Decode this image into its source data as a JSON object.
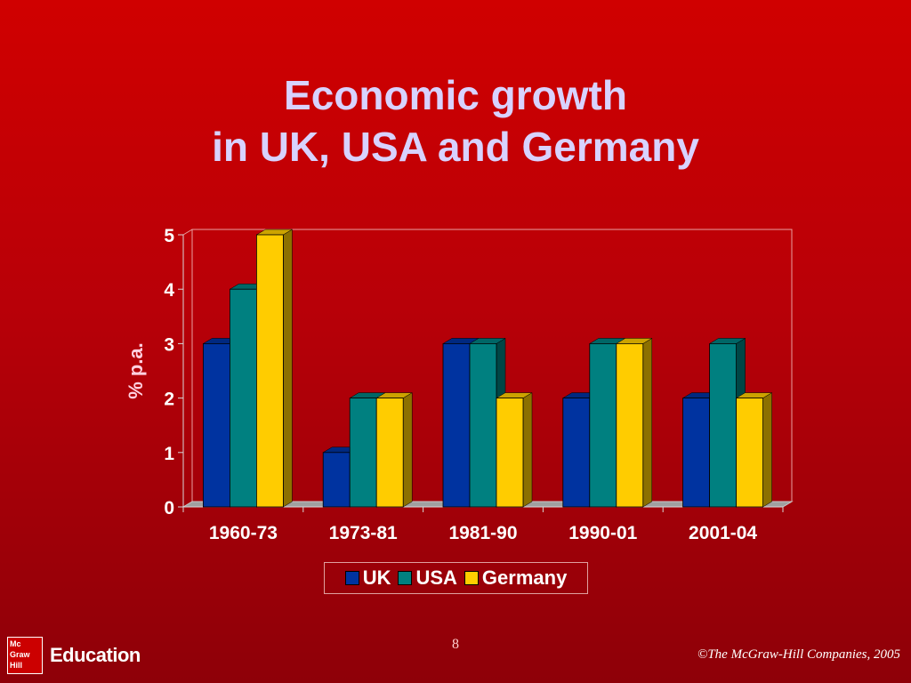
{
  "slide": {
    "title_line1": "Economic growth",
    "title_line2": "in UK, USA and Germany",
    "page_number": "8",
    "copyright": "©The McGraw-Hill Companies, 2005",
    "logo_line1": "Mc",
    "logo_line2": "Graw",
    "logo_line3": "Hill",
    "education_label": "Education"
  },
  "chart_data": {
    "type": "bar",
    "ylabel": "% p.a.",
    "xlabel": "",
    "ylim": [
      0,
      5
    ],
    "yticks": [
      "0",
      "1",
      "2",
      "3",
      "4",
      "5"
    ],
    "categories": [
      "1960-73",
      "1973-81",
      "1981-90",
      "1990-01",
      "2001-04"
    ],
    "series": [
      {
        "name": "UK",
        "color": "#0033a0",
        "values": [
          3,
          1,
          3,
          2,
          2
        ]
      },
      {
        "name": "USA",
        "color": "#008080",
        "values": [
          4,
          2,
          3,
          3,
          3
        ]
      },
      {
        "name": "Germany",
        "color": "#ffcc00",
        "values": [
          5,
          2,
          2,
          3,
          2
        ]
      }
    ],
    "legend_position": "bottom",
    "grid": false,
    "style": "3d-bar"
  }
}
